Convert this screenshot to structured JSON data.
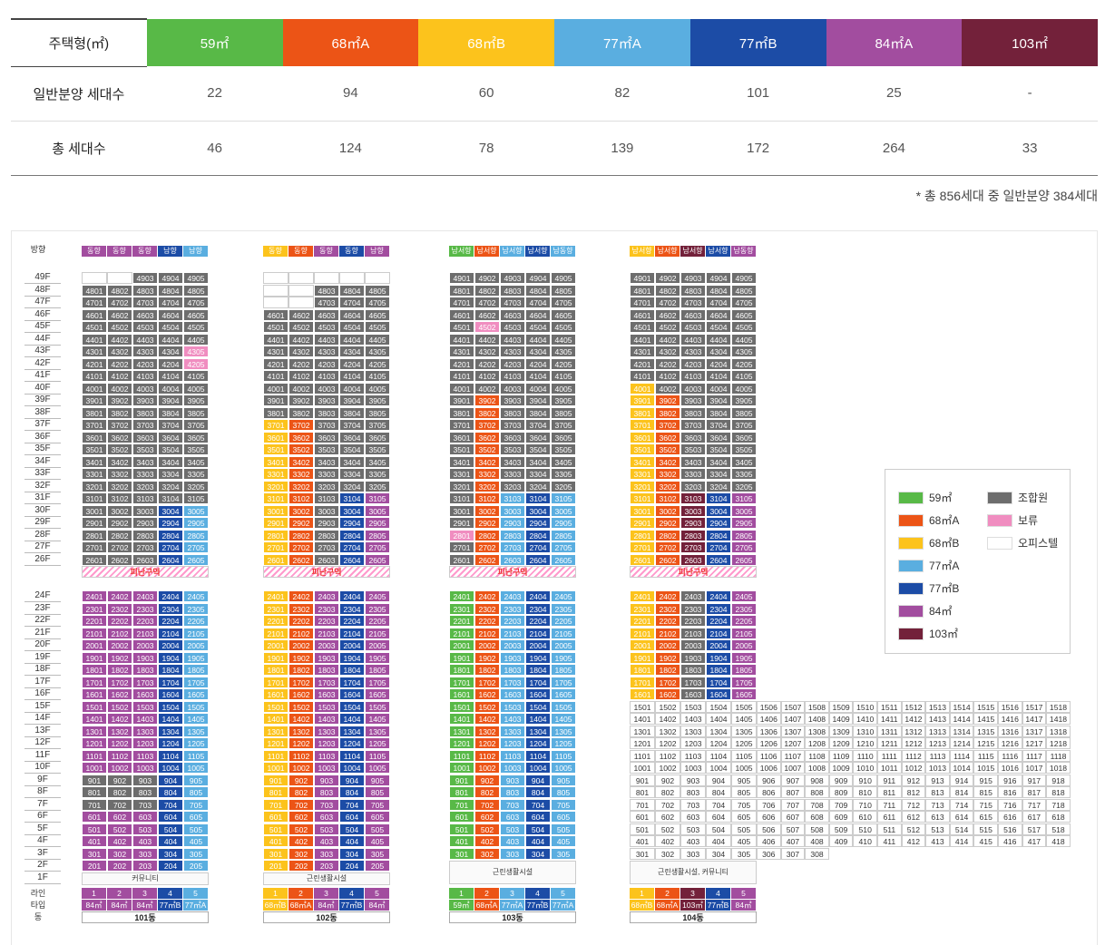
{
  "summary": {
    "header_label": "주택형(㎡)",
    "types": [
      {
        "name": "59㎡",
        "color": "#58b947",
        "general": "22",
        "total": "46"
      },
      {
        "name": "68㎡A",
        "color": "#ec5416",
        "general": "94",
        "total": "124"
      },
      {
        "name": "68㎡B",
        "color": "#fcc31c",
        "general": "60",
        "total": "78"
      },
      {
        "name": "77㎡A",
        "color": "#5aaee0",
        "general": "82",
        "total": "139"
      },
      {
        "name": "77㎡B",
        "color": "#1c4ca6",
        "general": "101",
        "total": "172"
      },
      {
        "name": "84㎡A",
        "color": "#a24d9f",
        "general": "25",
        "total": "264"
      },
      {
        "name": "103㎡",
        "color": "#73213a",
        "general": "-",
        "total": "33"
      }
    ],
    "general_label": "일반분양 세대수",
    "total_label": "총 세대수",
    "note": "* 총 856세대 중 일반분양 384세대"
  },
  "colors": {
    "59": "#58b947",
    "68A": "#ec5416",
    "68B": "#fcc31c",
    "77A": "#5aaee0",
    "77B": "#1c4ca6",
    "84": "#a24d9f",
    "103": "#73213a",
    "union": "#6d6d6d",
    "hold": "#f08dc0",
    "officetel": "#ffffff"
  },
  "labels": {
    "direction": "방향",
    "line": "라인",
    "type": "타입",
    "dong": "동",
    "evac": "피난구역"
  },
  "buildings": [
    {
      "name": "101동",
      "top": 49,
      "directions": [
        "동향",
        "동향",
        "동향",
        "남향",
        "남향"
      ],
      "dir_colors": [
        "84",
        "84",
        "84",
        "77B",
        "77A"
      ],
      "lines": [
        "1",
        "2",
        "3",
        "4",
        "5"
      ],
      "types": [
        "84㎡",
        "84㎡",
        "84㎡",
        "77㎡B",
        "77㎡A"
      ],
      "type_keys": [
        "84",
        "84",
        "84",
        "77B",
        "77A"
      ],
      "base": "커뮤니티",
      "basefloor": 1,
      "hide_top": {
        "49": [
          1,
          2
        ]
      },
      "union_rule": "101",
      "hold": {
        "43": [
          5
        ],
        "42": [
          5
        ]
      }
    },
    {
      "name": "102동",
      "top": 49,
      "directions": [
        "동향",
        "동향",
        "동향",
        "동향",
        "남향"
      ],
      "dir_colors": [
        "68B",
        "68A",
        "84",
        "77B",
        "84"
      ],
      "lines": [
        "1",
        "2",
        "3",
        "4",
        "5"
      ],
      "types": [
        "68㎡B",
        "68㎡A",
        "84㎡",
        "77㎡B",
        "84㎡"
      ],
      "type_keys": [
        "68B",
        "68A",
        "84",
        "77B",
        "84"
      ],
      "base": "근린생활시설",
      "basefloor": 1,
      "hide_top": {
        "49": [
          1,
          2,
          3,
          4,
          5
        ],
        "48": [
          1,
          2
        ],
        "47": [
          1,
          2
        ]
      },
      "union_rule": "102",
      "hold": {}
    },
    {
      "name": "103동",
      "top": 49,
      "directions": [
        "남서향",
        "남서향",
        "남서향",
        "남서향",
        "남동향"
      ],
      "dir_colors": [
        "59",
        "68A",
        "77A",
        "77B",
        "77A"
      ],
      "lines": [
        "1",
        "2",
        "3",
        "4",
        "5"
      ],
      "types": [
        "59㎡",
        "68㎡A",
        "77㎡A",
        "77㎡B",
        "77㎡A"
      ],
      "type_keys": [
        "59",
        "68A",
        "77A",
        "77B",
        "77A"
      ],
      "base": "근린생활시설",
      "basefloor": 2,
      "hide_top": {},
      "union_rule": "103",
      "hold": {
        "45": [
          2
        ],
        "28": [
          1
        ]
      }
    },
    {
      "name": "104동",
      "top": 49,
      "directions": [
        "남서향",
        "남서향",
        "남서향",
        "남서향",
        "남동향"
      ],
      "dir_colors": [
        "68B",
        "68A",
        "103",
        "77B",
        "84"
      ],
      "lines": [
        "1",
        "2",
        "3",
        "4",
        "5"
      ],
      "types": [
        "68㎡B",
        "68㎡A",
        "103㎡",
        "77㎡B",
        "84㎡"
      ],
      "type_keys": [
        "68B",
        "68A",
        "103",
        "77B",
        "84"
      ],
      "base": "근린생활시설, 커뮤니티",
      "basefloor": 2,
      "hide_top": {},
      "union_rule": "104",
      "hold": {}
    }
  ],
  "legend": [
    {
      "label": "59㎡",
      "key": "59"
    },
    {
      "label": "조합원",
      "key": "union"
    },
    {
      "label": "68㎡A",
      "key": "68A"
    },
    {
      "label": "보류",
      "key": "hold"
    },
    {
      "label": "68㎡B",
      "key": "68B"
    },
    {
      "label": "오피스텔",
      "key": "officetel"
    },
    {
      "label": "77㎡A",
      "key": "77A"
    },
    {
      "label": "77㎡B",
      "key": "77B"
    },
    {
      "label": "84㎡",
      "key": "84"
    },
    {
      "label": "103㎡",
      "key": "103"
    }
  ]
}
